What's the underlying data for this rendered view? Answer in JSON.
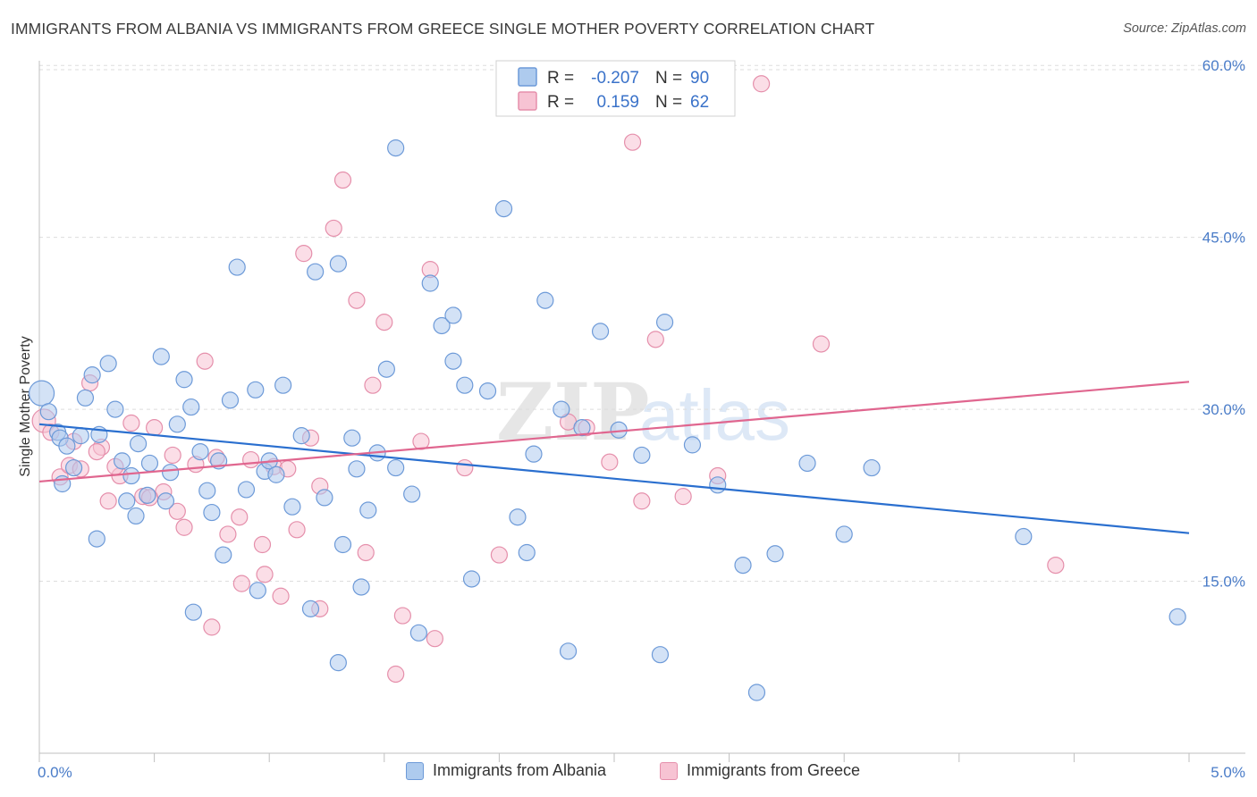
{
  "title": "IMMIGRANTS FROM ALBANIA VS IMMIGRANTS FROM GREECE SINGLE MOTHER POVERTY CORRELATION CHART",
  "source": "Source: ZipAtlas.com",
  "watermark": {
    "zip": "ZIP",
    "atlas": "atlas"
  },
  "legend_box": {
    "rows": [
      {
        "r_label": "R = ",
        "r_value": "-0.207",
        "n_label": "N = ",
        "n_value": "90"
      },
      {
        "r_label": "R = ",
        "r_value": "0.159",
        "n_label": "N = ",
        "n_value": "62"
      }
    ]
  },
  "colors": {
    "albania_fill": "#aecbee",
    "albania_stroke": "#6d9ad8",
    "albania_line": "#2a6fcf",
    "greece_fill": "#f7c3d3",
    "greece_stroke": "#e58fab",
    "greece_line": "#e0668f",
    "tick": "#4a7cc8",
    "grid": "#dddddd"
  },
  "chart_data": {
    "type": "scatter",
    "title": "IMMIGRANTS FROM ALBANIA VS IMMIGRANTS FROM GREECE SINGLE MOTHER POVERTY CORRELATION CHART",
    "xlabel": "",
    "ylabel": "Single Mother Poverty",
    "xlim": [
      0,
      5
    ],
    "ylim": [
      0,
      61.5
    ],
    "x_ticks": [
      "0.0%",
      "5.0%"
    ],
    "y_ticks": [
      {
        "value": 15,
        "label": "15.0%"
      },
      {
        "value": 30,
        "label": "30.0%"
      },
      {
        "value": 45,
        "label": "45.0%"
      },
      {
        "value": 60,
        "label": "60.0%"
      }
    ],
    "grid": true,
    "legend_position": "top-center",
    "series": [
      {
        "name": "Immigrants from Albania",
        "r": -0.207,
        "n": 90,
        "trend": {
          "x": [
            0,
            5
          ],
          "y": [
            28.7,
            19.2
          ]
        },
        "points": [
          [
            0.01,
            31.4
          ],
          [
            0.04,
            29.8
          ],
          [
            0.08,
            28.0
          ],
          [
            0.09,
            27.5
          ],
          [
            0.12,
            26.8
          ],
          [
            0.15,
            24.9
          ],
          [
            0.2,
            31.0
          ],
          [
            0.23,
            33.0
          ],
          [
            0.26,
            27.8
          ],
          [
            0.3,
            34.0
          ],
          [
            0.33,
            30.0
          ],
          [
            0.36,
            25.5
          ],
          [
            0.4,
            24.2
          ],
          [
            0.43,
            27.0
          ],
          [
            0.48,
            25.3
          ],
          [
            0.53,
            34.6
          ],
          [
            0.57,
            24.5
          ],
          [
            0.63,
            32.6
          ],
          [
            0.66,
            30.2
          ],
          [
            0.7,
            26.3
          ],
          [
            0.73,
            22.9
          ],
          [
            0.78,
            25.5
          ],
          [
            0.83,
            30.8
          ],
          [
            0.86,
            42.4
          ],
          [
            0.9,
            23.0
          ],
          [
            0.94,
            31.7
          ],
          [
            0.98,
            24.6
          ],
          [
            1.0,
            25.5
          ],
          [
            1.06,
            32.1
          ],
          [
            1.1,
            21.5
          ],
          [
            1.14,
            27.7
          ],
          [
            1.2,
            42.0
          ],
          [
            1.24,
            22.3
          ],
          [
            1.3,
            42.7
          ],
          [
            1.32,
            18.2
          ],
          [
            1.38,
            24.8
          ],
          [
            1.43,
            21.2
          ],
          [
            1.47,
            26.2
          ],
          [
            1.51,
            33.5
          ],
          [
            1.55,
            24.9
          ],
          [
            1.62,
            22.6
          ],
          [
            1.7,
            41.0
          ],
          [
            1.75,
            37.3
          ],
          [
            1.8,
            34.2
          ],
          [
            1.85,
            32.1
          ],
          [
            1.95,
            31.6
          ],
          [
            2.02,
            47.5
          ],
          [
            2.08,
            20.6
          ],
          [
            2.15,
            26.1
          ],
          [
            2.2,
            39.5
          ],
          [
            2.27,
            30.0
          ],
          [
            2.36,
            28.4
          ],
          [
            2.44,
            36.8
          ],
          [
            2.52,
            28.2
          ],
          [
            2.62,
            26.0
          ],
          [
            2.72,
            37.6
          ],
          [
            2.84,
            26.9
          ],
          [
            2.95,
            23.4
          ],
          [
            3.06,
            16.4
          ],
          [
            3.2,
            17.4
          ],
          [
            3.34,
            25.3
          ],
          [
            3.5,
            19.1
          ],
          [
            3.62,
            24.9
          ],
          [
            4.28,
            18.9
          ],
          [
            4.95,
            11.9
          ],
          [
            0.1,
            23.5
          ],
          [
            0.25,
            18.7
          ],
          [
            0.42,
            20.7
          ],
          [
            0.55,
            22.0
          ],
          [
            0.67,
            12.3
          ],
          [
            0.8,
            17.3
          ],
          [
            0.95,
            14.2
          ],
          [
            1.18,
            12.6
          ],
          [
            1.3,
            7.9
          ],
          [
            1.4,
            14.5
          ],
          [
            1.65,
            10.5
          ],
          [
            1.88,
            15.2
          ],
          [
            2.12,
            17.5
          ],
          [
            2.3,
            8.9
          ],
          [
            2.7,
            8.6
          ],
          [
            3.12,
            5.3
          ],
          [
            0.18,
            27.7
          ],
          [
            0.47,
            22.5
          ],
          [
            0.75,
            21.0
          ],
          [
            1.03,
            24.3
          ],
          [
            1.36,
            27.5
          ],
          [
            1.55,
            52.8
          ],
          [
            1.8,
            38.2
          ],
          [
            0.6,
            28.7
          ],
          [
            0.38,
            22.0
          ]
        ]
      },
      {
        "name": "Immigrants from Greece",
        "r": 0.159,
        "n": 62,
        "trend": {
          "x": [
            0,
            5
          ],
          "y": [
            23.7,
            32.4
          ]
        },
        "points": [
          [
            0.02,
            29.0
          ],
          [
            0.05,
            28.0
          ],
          [
            0.09,
            24.1
          ],
          [
            0.13,
            25.1
          ],
          [
            0.18,
            24.8
          ],
          [
            0.22,
            32.3
          ],
          [
            0.27,
            26.7
          ],
          [
            0.3,
            22.0
          ],
          [
            0.35,
            24.2
          ],
          [
            0.4,
            28.8
          ],
          [
            0.45,
            22.4
          ],
          [
            0.5,
            28.4
          ],
          [
            0.54,
            22.8
          ],
          [
            0.58,
            26.0
          ],
          [
            0.63,
            19.7
          ],
          [
            0.68,
            25.2
          ],
          [
            0.72,
            34.2
          ],
          [
            0.77,
            25.8
          ],
          [
            0.82,
            19.1
          ],
          [
            0.87,
            20.6
          ],
          [
            0.92,
            25.6
          ],
          [
            0.97,
            18.2
          ],
          [
            1.02,
            25.0
          ],
          [
            1.08,
            24.8
          ],
          [
            1.12,
            19.5
          ],
          [
            1.18,
            27.5
          ],
          [
            1.22,
            23.3
          ],
          [
            1.28,
            45.8
          ],
          [
            1.32,
            50.0
          ],
          [
            1.38,
            39.5
          ],
          [
            1.42,
            17.5
          ],
          [
            1.5,
            37.6
          ],
          [
            1.58,
            12.0
          ],
          [
            1.66,
            27.2
          ],
          [
            1.72,
            10.0
          ],
          [
            1.85,
            24.9
          ],
          [
            2.0,
            17.3
          ],
          [
            2.3,
            28.9
          ],
          [
            2.48,
            25.4
          ],
          [
            2.58,
            53.3
          ],
          [
            2.68,
            36.1
          ],
          [
            2.8,
            22.4
          ],
          [
            2.95,
            24.2
          ],
          [
            3.14,
            58.4
          ],
          [
            3.4,
            35.7
          ],
          [
            4.42,
            16.4
          ],
          [
            0.15,
            27.2
          ],
          [
            0.25,
            26.3
          ],
          [
            0.33,
            25.0
          ],
          [
            0.48,
            22.3
          ],
          [
            0.6,
            21.1
          ],
          [
            0.75,
            11.0
          ],
          [
            0.88,
            14.8
          ],
          [
            0.98,
            15.6
          ],
          [
            1.05,
            13.7
          ],
          [
            1.15,
            43.6
          ],
          [
            1.22,
            12.6
          ],
          [
            1.45,
            32.1
          ],
          [
            1.55,
            6.9
          ],
          [
            1.7,
            42.2
          ],
          [
            2.38,
            28.4
          ],
          [
            2.62,
            22.0
          ]
        ]
      }
    ]
  },
  "bottom_legend": [
    {
      "label": "Immigrants from Albania"
    },
    {
      "label": "Immigrants from Greece"
    }
  ]
}
